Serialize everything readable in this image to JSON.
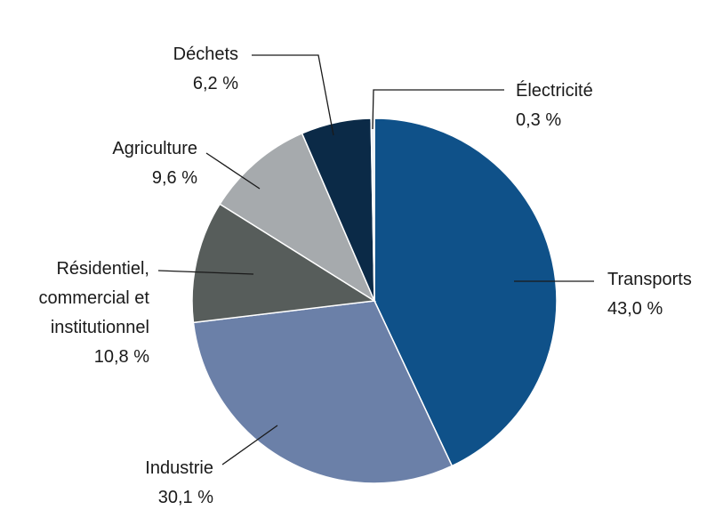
{
  "chart_data": {
    "type": "pie",
    "categories": [
      "Transports",
      "Industrie",
      "Résidentiel, commercial et institutionnel",
      "Agriculture",
      "Déchets",
      "Électricité"
    ],
    "values": [
      43.0,
      30.1,
      10.8,
      9.6,
      6.2,
      0.3
    ],
    "value_labels": [
      "43,0 %",
      "30,1 %",
      "10,8 %",
      "9,6 %",
      "6,2 %",
      "0,3 %"
    ],
    "colors": [
      "#0f5189",
      "#6b80a8",
      "#575d5b",
      "#a6aaad",
      "#0b2a47",
      "#e9eef3"
    ]
  }
}
